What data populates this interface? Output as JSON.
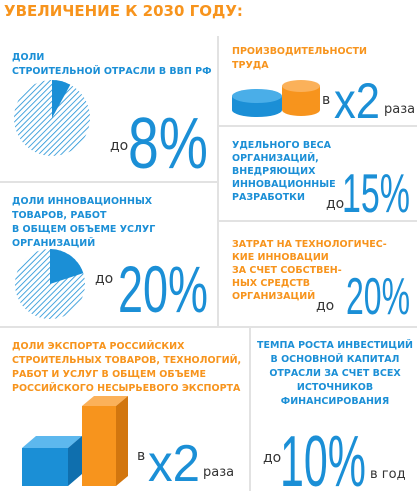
{
  "title": "УВЕЛИЧЕНИЕ К 2030 ГОДУ:",
  "panels": [
    {
      "label": [
        "ДОЛИ",
        "СТРОИТЕЛЬНОЙ ОТРАСЛИ В ВВП РФ"
      ],
      "prefix": "до",
      "figure": {
        "value": 8,
        "label": "8%"
      }
    },
    {
      "label": [
        "ПРОИЗВОДИТЕЛЬНОСТИ",
        "ТРУДА"
      ],
      "prefix": "в",
      "figure": "x2",
      "suffix": "раза"
    },
    {
      "label": [
        "УДЕЛЬНОГО ВЕСА",
        "ОРГАНИЗАЦИЙ,",
        "ВНЕДРЯЮЩИХ",
        "ИННОВАЦИОННЫЕ",
        "РАЗРАБОТКИ"
      ],
      "prefix": "до",
      "figure": "15%"
    },
    {
      "label": [
        "ДОЛИ ИННОВАЦИОННЫХ",
        "ТОВАРОВ, РАБОТ",
        "В ОБЩЕМ ОБЪЕМЕ УСЛУГ",
        "ОРГАНИЗАЦИЙ"
      ],
      "prefix": "до",
      "figure": {
        "value": 20,
        "label": "20%"
      }
    },
    {
      "label": [
        "ЗАТРАТ НА ТЕХНОЛОГИЧЕС-",
        "КИЕ ИННОВАЦИИ",
        "ЗА СЧЕТ СОБСТВЕН-",
        "НЫХ СРЕДСТВ",
        "ОРГАНИЗАЦИЙ"
      ],
      "prefix": "до",
      "figure": "20%"
    },
    {
      "label": [
        "ДОЛИ ЭКСПОРТА РОССИЙСКИХ",
        "СТРОИТЕЛЬНЫХ ТОВАРОВ, ТЕХНОЛОГИЙ,",
        "РАБОТ И УСЛУГ В ОБЩЕМ ОБЪЕМЕ",
        "РОССИЙСКОГО НЕСЫРЬЕВОГО ЭКСПОРТА"
      ],
      "prefix": "в",
      "figure": "x2",
      "suffix": "раза"
    },
    {
      "label": [
        "ТЕМПА РОСТА ИНВЕСТИЦИЙ",
        "В ОСНОВНОЙ КАПИТАЛ",
        "ОТРАСЛИ ЗА СЧЕТ ВСЕХ",
        "ИСТОЧНИКОВ",
        "ФИНАНСИРОВАНИЯ"
      ],
      "prefix": "до",
      "figure": "10%",
      "suffix": "в год"
    }
  ]
}
